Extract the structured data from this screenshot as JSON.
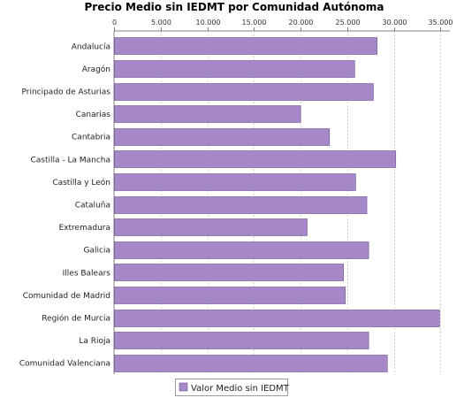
{
  "colors": {
    "bar_fill": "#a688c8",
    "bar_stroke": "#6a5490",
    "grid": "#d4d4d4",
    "axis": "#808080"
  },
  "legend": {
    "label": "Valor Medio sin IEDMT"
  },
  "chart_data": {
    "type": "bar",
    "orientation": "horizontal",
    "title": "Precio Medio sin IEDMT por Comunidad Autónoma",
    "xlabel": "",
    "ylabel": "",
    "xlim": [
      0,
      36000
    ],
    "ticks": [
      0,
      5000,
      10000,
      15000,
      20000,
      25000,
      30000,
      35000
    ],
    "tick_labels": [
      "0",
      "5.000",
      "10.000",
      "15.000",
      "20.000",
      "25.000",
      "30.000",
      "35.000"
    ],
    "grid": true,
    "legend_position": "bottom",
    "categories": [
      "Andalucía",
      "Aragón",
      "Principado de Asturias",
      "Canarias",
      "Cantabria",
      "Castilla - La Mancha",
      "Castilla y León",
      "Cataluña",
      "Extremadura",
      "Galicia",
      "Illes Balears",
      "Comunidad de Madrid",
      "Región de Murcia",
      "La Rioja",
      "Comunidad Valenciana"
    ],
    "series": [
      {
        "name": "Valor Medio sin IEDMT",
        "values": [
          28200,
          25800,
          27800,
          20000,
          23100,
          30200,
          25900,
          27100,
          20700,
          27300,
          24600,
          24800,
          34900,
          27300,
          29300
        ]
      }
    ]
  }
}
